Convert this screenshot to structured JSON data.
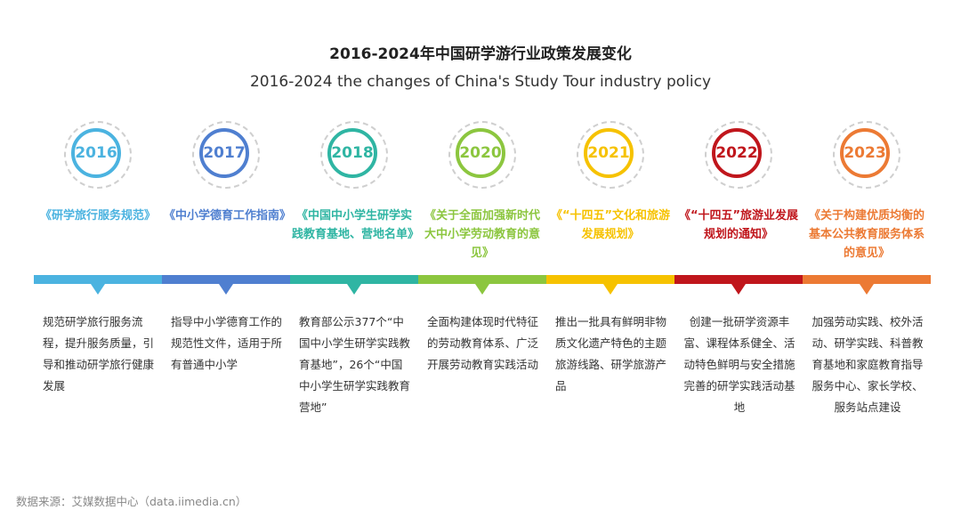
{
  "title": "2016-2024年中国研学游行业政策发展变化",
  "subtitle": "2016-2024 the changes of China's Study Tour industry policy",
  "items": [
    {
      "year": "2016",
      "color": "#4bb3e0",
      "policy": "《研学旅行服务规范》",
      "desc": "规范研学旅行服务流程，提升服务质量，引导和推动研学旅行健康发展"
    },
    {
      "year": "2017",
      "color": "#4f7fd0",
      "policy": "《中小学德育工作指南》",
      "desc": "指导中小学德育工作的规范性文件，适用于所有普通中小学"
    },
    {
      "year": "2018",
      "color": "#2fb5a3",
      "policy": "《中国中小学生研学实践教育基地、营地名单》",
      "desc": "教育部公示377个“中国中小学生研学实践教育基地”，26个“中国中小学生研学实践教育营地”"
    },
    {
      "year": "2020",
      "color": "#8cc63f",
      "policy": "《关于全面加强新时代大中小学劳动教育的意见》",
      "desc": "全面构建体现时代特征的劳动教育体系、广泛开展劳动教育实践活动"
    },
    {
      "year": "2021",
      "color": "#f6c200",
      "policy": "《“十四五”文化和旅游发展规划》",
      "desc": "推出一批具有鲜明非物质文化遗产特色的主题旅游线路、研学旅游产品"
    },
    {
      "year": "2022",
      "color": "#c0161c",
      "policy": "《“十四五”旅游业发展规划的通知》",
      "desc": "创建一批研学资源丰富、课程体系健全、活动特色鲜明与安全措施完善的研学实践活动基地"
    },
    {
      "year": "2023",
      "color": "#ec7a34",
      "policy": "《关于构建优质均衡的基本公共教育服务体系的意见》",
      "desc": "加强劳动实践、校外活动、研学实践、科普教育基地和家庭教育指导服务中心、家长学校、服务站点建设"
    }
  ],
  "source": "数据来源：艾媒数据中心（data.iimedia.cn）"
}
